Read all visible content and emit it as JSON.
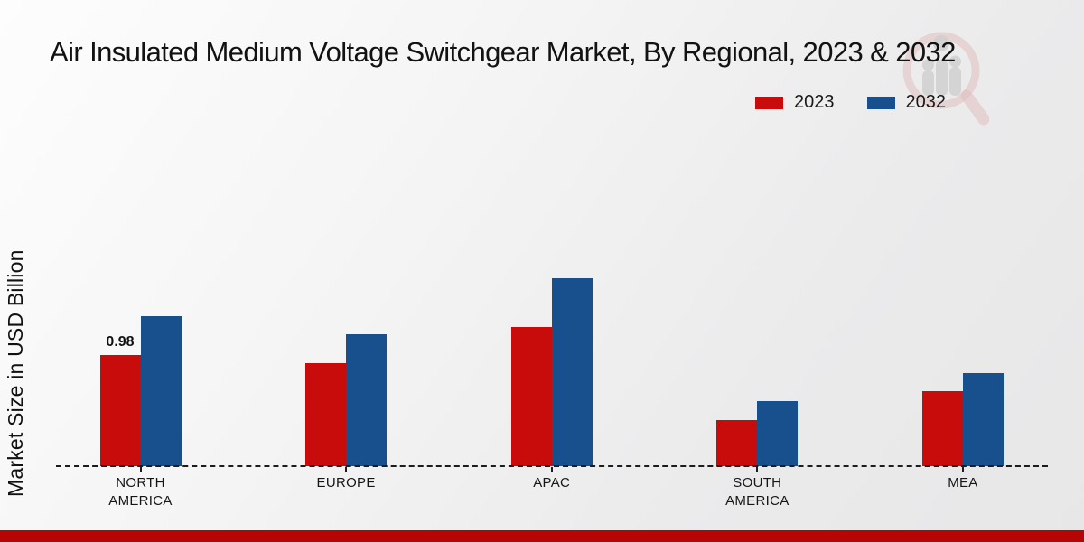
{
  "title": "Air Insulated Medium Voltage Switchgear Market, By Regional, 2023 & 2032",
  "ylabel": "Market Size in USD Billion",
  "legend": {
    "items": [
      {
        "label": "2023",
        "color": "#c80b0b"
      },
      {
        "label": "2032",
        "color": "#17508c"
      }
    ]
  },
  "colors": {
    "bar_2023": "#c80b0b",
    "bar_2032": "#17508c",
    "bottom_strip": "#b50505",
    "baseline": "#1c1c1c",
    "watermark_ring": "#d89a9a",
    "watermark_gray": "#b5b5b5"
  },
  "bottom_strip": {
    "present": true
  },
  "watermark_icon": "magnifier-bar-chart-logo",
  "chart_data": {
    "type": "bar",
    "categories": [
      "NORTH\nAMERICA",
      "EUROPE",
      "APAC",
      "SOUTH\nAMERICA",
      "MEA"
    ],
    "series": [
      {
        "name": "2023",
        "color": "#c80b0b",
        "values": [
          0.98,
          0.91,
          1.23,
          0.41,
          0.66
        ]
      },
      {
        "name": "2032",
        "color": "#17508c",
        "values": [
          1.32,
          1.16,
          1.66,
          0.57,
          0.82
        ]
      }
    ],
    "data_labels": [
      {
        "series": "2023",
        "category_index": 0,
        "text": "0.98"
      }
    ],
    "title": "Air Insulated Medium Voltage Switchgear Market, By Regional, 2023 & 2032",
    "xlabel": "",
    "ylabel": "Market Size in USD Billion",
    "ylim": [
      0,
      1.9
    ],
    "grid": false,
    "baseline_style": "dashed",
    "legend_position": "top-right"
  }
}
